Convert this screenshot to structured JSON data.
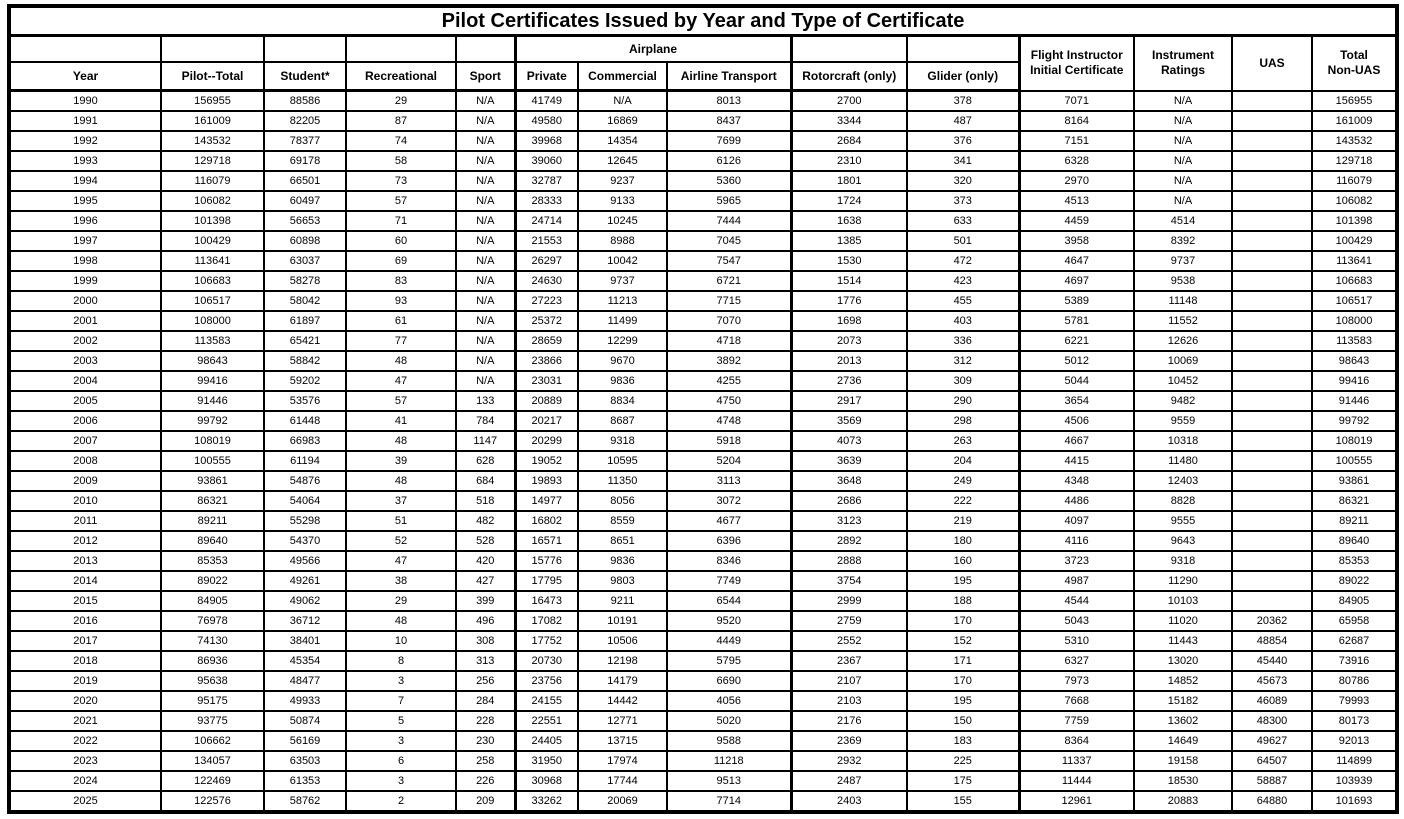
{
  "title": "Pilot Certificates Issued by Year and Type of Certificate",
  "headers": {
    "year": "Year",
    "pilot_total": "Pilot--Total",
    "student": "Student*",
    "recreational": "Recreational",
    "sport": "Sport",
    "airplane_group": "Airplane",
    "private": "Private",
    "commercial": "Commercial",
    "airline_transport": "Airline Transport",
    "rotorcraft": "Rotorcraft (only)",
    "glider": "Glider (only)",
    "flight_instructor_line1": "Flight Instructor",
    "flight_instructor_line2": "Initial Certificate",
    "instrument_line1": "Instrument",
    "instrument_line2": "Ratings",
    "uas": "UAS",
    "total_line1": "Total",
    "total_line2": "Non-UAS"
  },
  "columns": [
    "Year",
    "Pilot--Total",
    "Student*",
    "Recreational",
    "Sport",
    "Private",
    "Commercial",
    "Airline Transport",
    "Rotorcraft (only)",
    "Glider (only)",
    "Flight Instructor Initial Certificate",
    "Instrument Ratings",
    "UAS",
    "Total Non-UAS"
  ],
  "rows": [
    [
      "1990",
      "156955",
      "88586",
      "29",
      "N/A",
      "41749",
      "N/A",
      "8013",
      "2700",
      "378",
      "7071",
      "N/A",
      "",
      "156955"
    ],
    [
      "1991",
      "161009",
      "82205",
      "87",
      "N/A",
      "49580",
      "16869",
      "8437",
      "3344",
      "487",
      "8164",
      "N/A",
      "",
      "161009"
    ],
    [
      "1992",
      "143532",
      "78377",
      "74",
      "N/A",
      "39968",
      "14354",
      "7699",
      "2684",
      "376",
      "7151",
      "N/A",
      "",
      "143532"
    ],
    [
      "1993",
      "129718",
      "69178",
      "58",
      "N/A",
      "39060",
      "12645",
      "6126",
      "2310",
      "341",
      "6328",
      "N/A",
      "",
      "129718"
    ],
    [
      "1994",
      "116079",
      "66501",
      "73",
      "N/A",
      "32787",
      "9237",
      "5360",
      "1801",
      "320",
      "2970",
      "N/A",
      "",
      "116079"
    ],
    [
      "1995",
      "106082",
      "60497",
      "57",
      "N/A",
      "28333",
      "9133",
      "5965",
      "1724",
      "373",
      "4513",
      "N/A",
      "",
      "106082"
    ],
    [
      "1996",
      "101398",
      "56653",
      "71",
      "N/A",
      "24714",
      "10245",
      "7444",
      "1638",
      "633",
      "4459",
      "4514",
      "",
      "101398"
    ],
    [
      "1997",
      "100429",
      "60898",
      "60",
      "N/A",
      "21553",
      "8988",
      "7045",
      "1385",
      "501",
      "3958",
      "8392",
      "",
      "100429"
    ],
    [
      "1998",
      "113641",
      "63037",
      "69",
      "N/A",
      "26297",
      "10042",
      "7547",
      "1530",
      "472",
      "4647",
      "9737",
      "",
      "113641"
    ],
    [
      "1999",
      "106683",
      "58278",
      "83",
      "N/A",
      "24630",
      "9737",
      "6721",
      "1514",
      "423",
      "4697",
      "9538",
      "",
      "106683"
    ],
    [
      "2000",
      "106517",
      "58042",
      "93",
      "N/A",
      "27223",
      "11213",
      "7715",
      "1776",
      "455",
      "5389",
      "11148",
      "",
      "106517"
    ],
    [
      "2001",
      "108000",
      "61897",
      "61",
      "N/A",
      "25372",
      "11499",
      "7070",
      "1698",
      "403",
      "5781",
      "11552",
      "",
      "108000"
    ],
    [
      "2002",
      "113583",
      "65421",
      "77",
      "N/A",
      "28659",
      "12299",
      "4718",
      "2073",
      "336",
      "6221",
      "12626",
      "",
      "113583"
    ],
    [
      "2003",
      "98643",
      "58842",
      "48",
      "N/A",
      "23866",
      "9670",
      "3892",
      "2013",
      "312",
      "5012",
      "10069",
      "",
      "98643"
    ],
    [
      "2004",
      "99416",
      "59202",
      "47",
      "N/A",
      "23031",
      "9836",
      "4255",
      "2736",
      "309",
      "5044",
      "10452",
      "",
      "99416"
    ],
    [
      "2005",
      "91446",
      "53576",
      "57",
      "133",
      "20889",
      "8834",
      "4750",
      "2917",
      "290",
      "3654",
      "9482",
      "",
      "91446"
    ],
    [
      "2006",
      "99792",
      "61448",
      "41",
      "784",
      "20217",
      "8687",
      "4748",
      "3569",
      "298",
      "4506",
      "9559",
      "",
      "99792"
    ],
    [
      "2007",
      "108019",
      "66983",
      "48",
      "1147",
      "20299",
      "9318",
      "5918",
      "4073",
      "263",
      "4667",
      "10318",
      "",
      "108019"
    ],
    [
      "2008",
      "100555",
      "61194",
      "39",
      "628",
      "19052",
      "10595",
      "5204",
      "3639",
      "204",
      "4415",
      "11480",
      "",
      "100555"
    ],
    [
      "2009",
      "93861",
      "54876",
      "48",
      "684",
      "19893",
      "11350",
      "3113",
      "3648",
      "249",
      "4348",
      "12403",
      "",
      "93861"
    ],
    [
      "2010",
      "86321",
      "54064",
      "37",
      "518",
      "14977",
      "8056",
      "3072",
      "2686",
      "222",
      "4486",
      "8828",
      "",
      "86321"
    ],
    [
      "2011",
      "89211",
      "55298",
      "51",
      "482",
      "16802",
      "8559",
      "4677",
      "3123",
      "219",
      "4097",
      "9555",
      "",
      "89211"
    ],
    [
      "2012",
      "89640",
      "54370",
      "52",
      "528",
      "16571",
      "8651",
      "6396",
      "2892",
      "180",
      "4116",
      "9643",
      "",
      "89640"
    ],
    [
      "2013",
      "85353",
      "49566",
      "47",
      "420",
      "15776",
      "9836",
      "8346",
      "2888",
      "160",
      "3723",
      "9318",
      "",
      "85353"
    ],
    [
      "2014",
      "89022",
      "49261",
      "38",
      "427",
      "17795",
      "9803",
      "7749",
      "3754",
      "195",
      "4987",
      "11290",
      "",
      "89022"
    ],
    [
      "2015",
      "84905",
      "49062",
      "29",
      "399",
      "16473",
      "9211",
      "6544",
      "2999",
      "188",
      "4544",
      "10103",
      "",
      "84905"
    ],
    [
      "2016",
      "76978",
      "36712",
      "48",
      "496",
      "17082",
      "10191",
      "9520",
      "2759",
      "170",
      "5043",
      "11020",
      "20362",
      "65958"
    ],
    [
      "2017",
      "74130",
      "38401",
      "10",
      "308",
      "17752",
      "10506",
      "4449",
      "2552",
      "152",
      "5310",
      "11443",
      "48854",
      "62687"
    ],
    [
      "2018",
      "86936",
      "45354",
      "8",
      "313",
      "20730",
      "12198",
      "5795",
      "2367",
      "171",
      "6327",
      "13020",
      "45440",
      "73916"
    ],
    [
      "2019",
      "95638",
      "48477",
      "3",
      "256",
      "23756",
      "14179",
      "6690",
      "2107",
      "170",
      "7973",
      "14852",
      "45673",
      "80786"
    ],
    [
      "2020",
      "95175",
      "49933",
      "7",
      "284",
      "24155",
      "14442",
      "4056",
      "2103",
      "195",
      "7668",
      "15182",
      "46089",
      "79993"
    ],
    [
      "2021",
      "93775",
      "50874",
      "5",
      "228",
      "22551",
      "12771",
      "5020",
      "2176",
      "150",
      "7759",
      "13602",
      "48300",
      "80173"
    ],
    [
      "2022",
      "106662",
      "56169",
      "3",
      "230",
      "24405",
      "13715",
      "9588",
      "2369",
      "183",
      "8364",
      "14649",
      "49627",
      "92013"
    ],
    [
      "2023",
      "134057",
      "63503",
      "6",
      "258",
      "31950",
      "17974",
      "11218",
      "2932",
      "225",
      "11337",
      "19158",
      "64507",
      "114899"
    ],
    [
      "2024",
      "122469",
      "61353",
      "3",
      "226",
      "30968",
      "17744",
      "9513",
      "2487",
      "175",
      "11444",
      "18530",
      "58887",
      "103939"
    ],
    [
      "2025",
      "122576",
      "58762",
      "2",
      "209",
      "33262",
      "20069",
      "7714",
      "2403",
      "155",
      "12961",
      "20883",
      "64880",
      "101693"
    ]
  ]
}
